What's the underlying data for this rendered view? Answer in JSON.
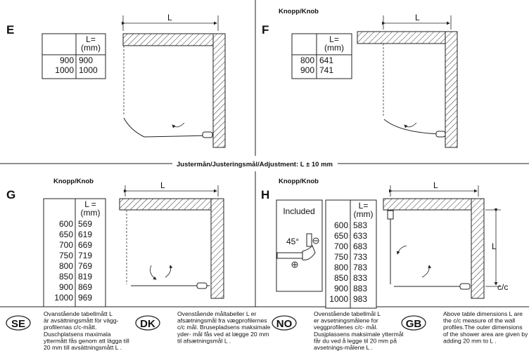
{
  "adjustment_label": "Justermån/Justeringsmål/Adjustment: L ± 10 mm",
  "dimension_label": "L",
  "cc_label": "c/c",
  "knob_label": "Knopp/Knob",
  "panels": {
    "E": {
      "label": "E",
      "header": "L=\n(mm)",
      "rows": [
        [
          "900",
          "900"
        ],
        [
          "1000",
          "1000"
        ]
      ]
    },
    "F": {
      "label": "F",
      "knob": "Knopp/Knob",
      "header": "L=\n(mm)",
      "rows": [
        [
          "800",
          "641"
        ],
        [
          "900",
          "741"
        ]
      ]
    },
    "G": {
      "label": "G",
      "knob": "Knopp/Knob",
      "header": "L =\n(mm)",
      "rows": [
        [
          "600",
          "569"
        ],
        [
          "650",
          "619"
        ],
        [
          "700",
          "669"
        ],
        [
          "750",
          "719"
        ],
        [
          "800",
          "769"
        ],
        [
          "850",
          "819"
        ],
        [
          "900",
          "869"
        ],
        [
          "1000",
          "969"
        ]
      ]
    },
    "H": {
      "label": "H",
      "knob": "Knopp/Knob",
      "included": "Included",
      "angle": "45°",
      "header": "L=\n(mm)",
      "rows": [
        [
          "600",
          "583"
        ],
        [
          "650",
          "633"
        ],
        [
          "700",
          "683"
        ],
        [
          "750",
          "733"
        ],
        [
          "800",
          "783"
        ],
        [
          "850",
          "833"
        ],
        [
          "900",
          "883"
        ],
        [
          "1000",
          "983"
        ]
      ]
    }
  },
  "notes": [
    {
      "badge": "SE",
      "lines": [
        "Ovanstående tabellmått L",
        "är avsättningsmått för vägg-",
        "profilernas c/c-mått.",
        "Duschplatsens maximala",
        "yttermått fås genom att lägga till",
        "20 mm till avsättningsmått L ."
      ]
    },
    {
      "badge": "DK",
      "lines": [
        "Ovenstående måltabeller L er",
        "afsætningsmål fra vægprofilernes",
        "c/c mål. Brusepladsens maksimale",
        "yder- mål fås ved at lægge 20 mm",
        "til afsætningsmål L ."
      ]
    },
    {
      "badge": "NO",
      "lines": [
        "Ovenstående tabellmål L",
        "er avsetningsmålene for",
        "veggprofilenes c/c- mål.",
        "Dusjplassens maksimale yttermål",
        "får du ved å legge til 20 mm på",
        "avsetnings-målene L ."
      ]
    },
    {
      "badge": "GB",
      "lines": [
        "Above table dimensions L are",
        "the c/c measure of the wall",
        "profiles.The outer dimensions",
        "of the shower area are given by",
        "adding 20 mm to L ."
      ]
    }
  ]
}
